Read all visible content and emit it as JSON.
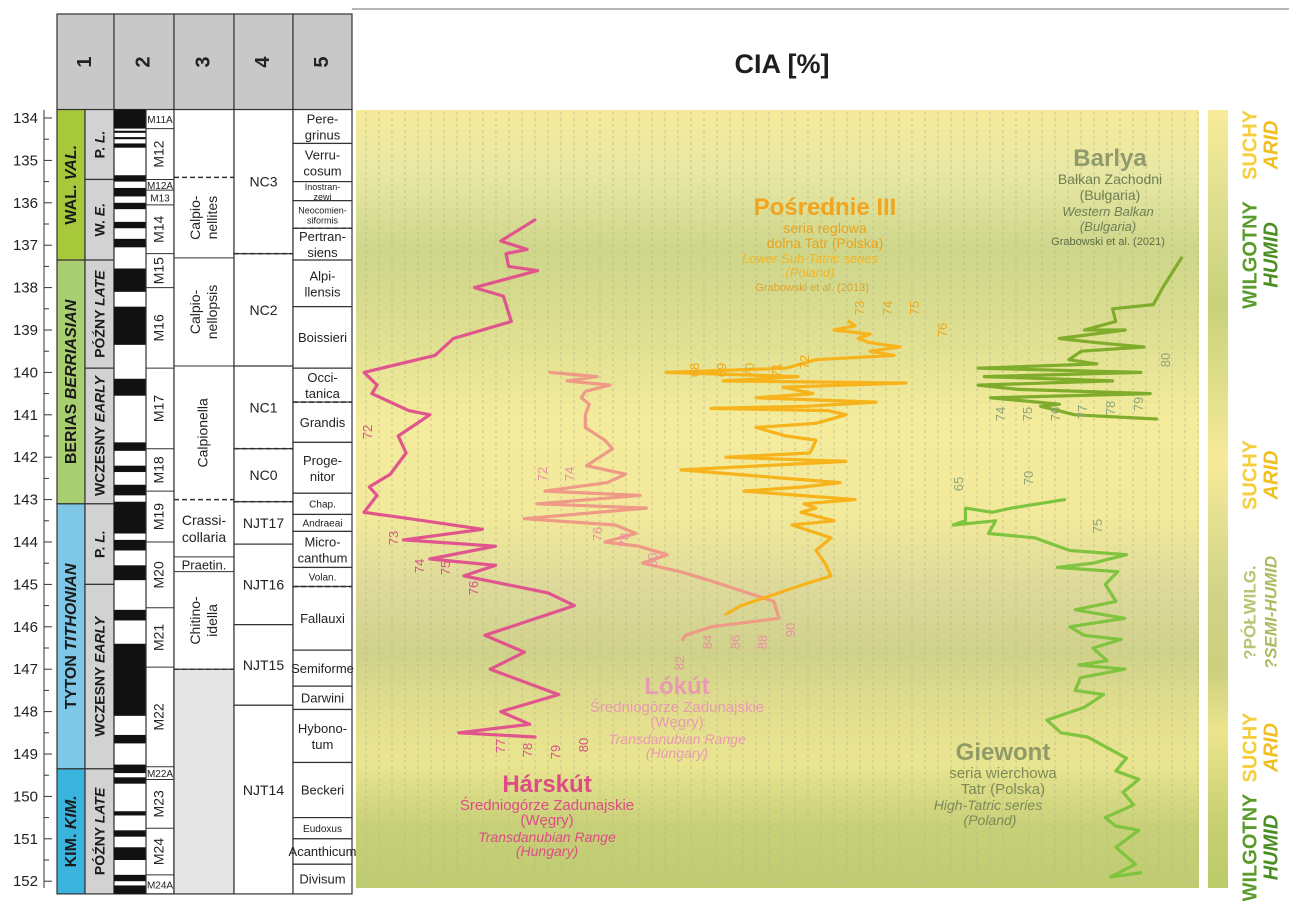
{
  "chart_data": {
    "type": "line",
    "title": "CIA [%]",
    "y_axis": {
      "label": "",
      "min": 134,
      "max": 152,
      "ticks": [
        134,
        135,
        136,
        137,
        138,
        139,
        140,
        141,
        142,
        143,
        144,
        145,
        146,
        147,
        148,
        149,
        150,
        151,
        152
      ],
      "inverted": true
    },
    "columns": {
      "headers": [
        "1",
        "2",
        "3",
        "4",
        "5"
      ],
      "col1_stages": [
        {
          "label": "WAL. VAL.",
          "from": 133.8,
          "to": 137.35,
          "color": "#a6c83a"
        },
        {
          "label": "BERIAS BERRIASIAN",
          "from": 137.35,
          "to": 143.1,
          "color": "#a9cf72"
        },
        {
          "label": "TYTON TITHONIAN",
          "from": 143.1,
          "to": 149.35,
          "color": "#7fc7e6"
        },
        {
          "label": "KIM. KIM.",
          "from": 149.35,
          "to": 152.3,
          "color": "#3ab4dc"
        }
      ],
      "col1_substages": [
        {
          "label": "P. L.",
          "from": 133.8,
          "to": 135.45
        },
        {
          "label": "W. E.",
          "from": 135.45,
          "to": 137.35
        },
        {
          "label": "PÓŹNY LATE",
          "from": 137.35,
          "to": 139.9
        },
        {
          "label": "WCZESNY EARLY",
          "from": 139.9,
          "to": 143.1
        },
        {
          "label": "P. L.",
          "from": 143.1,
          "to": 145.0
        },
        {
          "label": "WCZESNY EARLY",
          "from": 145.0,
          "to": 149.35
        },
        {
          "label": "PÓŹNY LATE",
          "from": 149.35,
          "to": 152.3
        }
      ],
      "col2_zones": [
        "M11A",
        "M12",
        "M12A",
        "M13",
        "M14",
        "M15",
        "M16",
        "M17",
        "M18",
        "M19",
        "M20",
        "M21",
        "M22",
        "M22A",
        "M23",
        "M24",
        "M24A"
      ],
      "col3_zones": [
        "Calpio-nellites",
        "Calpio-nellopsis",
        "Calpionella",
        "Crassi-collaria",
        "Praetin.",
        "Chitino-idella"
      ],
      "col4_zones": [
        "NC3",
        "NC2",
        "NC1",
        "NC0",
        "NJT17",
        "NJT16",
        "NJT15",
        "NJT14"
      ],
      "col5_zones": [
        "Pere-grinus",
        "Verru-cosum",
        "Inostran-zewi",
        "Neocomien-siformis",
        "Pertran-siens",
        "Alpi-llensis",
        "Boissieri",
        "Occi-tanica",
        "Grandis",
        "Proge-nitor",
        "Chap.",
        "Andraeai",
        "Micro-canthum",
        "Volan.",
        "Fallauxi",
        "Semiforme",
        "Darwini",
        "Hybono-tum",
        "Beckeri",
        "Eudoxus",
        "Acanthicum",
        "Divisum"
      ]
    },
    "climate_labels": [
      {
        "pl": "SUCHY",
        "en": "ARID",
        "center": 134.6
      },
      {
        "pl": "WILGOTNY",
        "en": "HUMID",
        "center": 137.0
      },
      {
        "pl": "SUCHY",
        "en": "ARID",
        "center": 142.3
      },
      {
        "pl": "?PÓŁWILG.",
        "en": "?SEMI-HUMID",
        "center": 145.9
      },
      {
        "pl": "SUCHY",
        "en": "ARID",
        "center": 148.8
      },
      {
        "pl": "WILGOTNY",
        "en": "HUMID",
        "center": 151.1
      }
    ],
    "series": [
      {
        "name": "Hárskút",
        "sub_pl": "Średniogórze Zadunajskie",
        "country_pl": "(Węgry)",
        "sub_en": "Transdanubian Range",
        "country_en": "(Hungary)",
        "color": "#e0558d",
        "tick_values": [
          72,
          73,
          74,
          75,
          76,
          77,
          78,
          79,
          80
        ],
        "points": [
          [
            78.5,
            136.4
          ],
          [
            77.2,
            136.9
          ],
          [
            78.2,
            137.1
          ],
          [
            77.4,
            137.2
          ],
          [
            77.5,
            137.5
          ],
          [
            78.6,
            137.6
          ],
          [
            76.2,
            138.0
          ],
          [
            77.3,
            138.2
          ],
          [
            77.6,
            138.8
          ],
          [
            75.4,
            139.2
          ],
          [
            74.7,
            139.6
          ],
          [
            72.0,
            140.0
          ],
          [
            72.5,
            140.3
          ],
          [
            72.3,
            140.5
          ],
          [
            73.7,
            140.9
          ],
          [
            74.5,
            141.0
          ],
          [
            73.3,
            141.5
          ],
          [
            73.6,
            141.9
          ],
          [
            73.0,
            142.4
          ],
          [
            72.2,
            142.7
          ],
          [
            72.5,
            142.9
          ],
          [
            72.0,
            143.3
          ],
          [
            74.3,
            143.5
          ],
          [
            76.5,
            143.7
          ],
          [
            73.5,
            143.95
          ],
          [
            77.0,
            144.1
          ],
          [
            74.5,
            144.4
          ],
          [
            77.0,
            144.55
          ],
          [
            75.8,
            144.8
          ],
          [
            79.0,
            145.2
          ],
          [
            80.0,
            145.5
          ],
          [
            76.6,
            146.2
          ],
          [
            78.1,
            146.6
          ],
          [
            76.8,
            147.0
          ],
          [
            79.4,
            147.6
          ],
          [
            77.2,
            148.0
          ],
          [
            78.3,
            148.3
          ],
          [
            75.6,
            148.5
          ],
          [
            78.5,
            148.6
          ]
        ]
      },
      {
        "name": "Lókút",
        "sub_pl": "Średniogórze Zadunajskie",
        "country_pl": "(Węgry)",
        "sub_en": "Transdanubian Range",
        "country_en": "(Hungary)",
        "color": "#ee9a86",
        "tick_values": [
          72,
          74,
          76,
          78,
          80,
          82,
          84,
          86,
          88,
          90
        ],
        "points": [
          [
            72.4,
            140.0
          ],
          [
            76.0,
            140.1
          ],
          [
            73.7,
            140.2
          ],
          [
            77.0,
            140.3
          ],
          [
            75.1,
            140.45
          ],
          [
            74.8,
            140.6
          ],
          [
            75.4,
            140.75
          ],
          [
            75.1,
            141.0
          ],
          [
            75.1,
            141.3
          ],
          [
            76.6,
            141.6
          ],
          [
            77.2,
            141.8
          ],
          [
            75.2,
            142.2
          ],
          [
            78.2,
            142.4
          ],
          [
            76.8,
            142.6
          ],
          [
            72.0,
            142.8
          ],
          [
            79.3,
            142.9
          ],
          [
            71.4,
            143.1
          ],
          [
            79.8,
            143.2
          ],
          [
            70.4,
            143.45
          ],
          [
            77.4,
            143.6
          ],
          [
            79.0,
            143.8
          ],
          [
            76.6,
            144.0
          ],
          [
            79.2,
            144.1
          ],
          [
            81.4,
            144.3
          ],
          [
            79.5,
            144.5
          ],
          [
            82.4,
            144.7
          ],
          [
            84.6,
            144.9
          ],
          [
            89.6,
            145.4
          ],
          [
            90.0,
            145.8
          ],
          [
            84.8,
            146.0
          ],
          [
            82.8,
            146.2
          ],
          [
            82.6,
            146.3
          ]
        ]
      },
      {
        "name": "Pośrednie III",
        "sub_pl": "seria reglowa dolna Tatr (Polska)",
        "sub_en": "Lower Sub-Tatric series",
        "country_en": "(Poland)",
        "ref": "Grabowski et al. (2013)",
        "color": "#f6b31b",
        "tick_values": [
          68,
          69,
          70,
          71,
          72,
          73,
          74,
          75,
          76
        ],
        "points": [
          [
            74.1,
            138.8
          ],
          [
            74.3,
            138.9
          ],
          [
            73.6,
            139.0
          ],
          [
            74.8,
            139.1
          ],
          [
            74.4,
            139.2
          ],
          [
            74.8,
            139.3
          ],
          [
            75.8,
            139.4
          ],
          [
            74.8,
            139.5
          ],
          [
            75.6,
            139.6
          ],
          [
            73.0,
            139.7
          ],
          [
            72.0,
            139.9
          ],
          [
            68.0,
            140.0
          ],
          [
            72.4,
            140.1
          ],
          [
            69.9,
            140.2
          ],
          [
            76.0,
            140.25
          ],
          [
            71.9,
            140.35
          ],
          [
            72.9,
            140.5
          ],
          [
            71.0,
            140.6
          ],
          [
            75.0,
            140.7
          ],
          [
            72.7,
            140.8
          ],
          [
            69.5,
            140.85
          ],
          [
            73.4,
            140.9
          ],
          [
            74.0,
            141.0
          ],
          [
            73.0,
            141.2
          ],
          [
            71.0,
            141.3
          ],
          [
            72.0,
            141.5
          ],
          [
            73.0,
            141.6
          ],
          [
            72.8,
            141.9
          ],
          [
            70.0,
            142.0
          ],
          [
            74.0,
            142.1
          ],
          [
            68.5,
            142.3
          ],
          [
            72.0,
            142.5
          ],
          [
            73.8,
            142.6
          ],
          [
            72.6,
            142.7
          ],
          [
            70.6,
            142.8
          ],
          [
            74.3,
            143.0
          ],
          [
            72.6,
            143.1
          ],
          [
            73.0,
            143.2
          ],
          [
            72.5,
            143.3
          ],
          [
            73.6,
            143.5
          ],
          [
            72.2,
            143.6
          ],
          [
            73.5,
            143.9
          ],
          [
            73.0,
            144.2
          ],
          [
            73.3,
            144.5
          ],
          [
            73.5,
            144.8
          ],
          [
            72.6,
            145.0
          ],
          [
            70.5,
            145.5
          ],
          [
            70.0,
            145.7
          ]
        ]
      },
      {
        "name": "Barlya",
        "sub_pl": "Bałkan Zachodni",
        "country_pl": "(Bułgaria)",
        "sub_en": "Western Balkan",
        "country_en": "(Bulgaria)",
        "ref": "Grabowski et al. (2021)",
        "color": "#7fac2a",
        "tick_values": [
          74,
          75,
          76,
          77,
          78,
          79,
          80
        ],
        "points": [
          [
            80.5,
            137.3
          ],
          [
            79.9,
            138.0
          ],
          [
            79.6,
            138.4
          ],
          [
            78.3,
            138.5
          ],
          [
            78.4,
            138.8
          ],
          [
            77.4,
            139.0
          ],
          [
            78.7,
            139.0
          ],
          [
            76.6,
            139.2
          ],
          [
            77.8,
            139.3
          ],
          [
            79.3,
            139.4
          ],
          [
            77.3,
            139.5
          ],
          [
            76.9,
            139.7
          ],
          [
            77.8,
            139.8
          ],
          [
            74.0,
            139.9
          ],
          [
            79.2,
            140.0
          ],
          [
            74.2,
            140.1
          ],
          [
            78.3,
            140.2
          ],
          [
            74.0,
            140.3
          ],
          [
            75.3,
            140.4
          ],
          [
            79.5,
            140.5
          ],
          [
            74.4,
            140.6
          ],
          [
            76.6,
            140.75
          ],
          [
            76.0,
            140.8
          ],
          [
            77.1,
            141.0
          ],
          [
            79.7,
            141.1
          ]
        ]
      },
      {
        "name": "Giewont",
        "sub_pl": "seria wierchowa Tatr (Polska)",
        "sub_en": "High-Tatric series",
        "country_en": "(Poland)",
        "color": "#7fc33e",
        "tick_values": [
          65,
          70,
          75
        ],
        "points": [
          [
            71.7,
            143.0
          ],
          [
            68.7,
            143.2
          ],
          [
            67.6,
            143.3
          ],
          [
            66.1,
            143.2
          ],
          [
            66.1,
            143.5
          ],
          [
            65.4,
            143.6
          ],
          [
            67.8,
            143.5
          ],
          [
            67.4,
            143.8
          ],
          [
            70.0,
            143.9
          ],
          [
            72.0,
            144.2
          ],
          [
            75.2,
            144.3
          ],
          [
            73.3,
            144.5
          ],
          [
            71.3,
            144.6
          ],
          [
            74.7,
            144.7
          ],
          [
            74.0,
            145.0
          ],
          [
            74.6,
            145.4
          ],
          [
            72.3,
            145.6
          ],
          [
            75.1,
            145.8
          ],
          [
            72.0,
            146.0
          ],
          [
            72.8,
            146.2
          ],
          [
            74.9,
            146.3
          ],
          [
            73.3,
            146.5
          ],
          [
            74.1,
            146.8
          ],
          [
            72.5,
            146.9
          ],
          [
            75.1,
            147.0
          ],
          [
            72.6,
            147.2
          ],
          [
            72.3,
            147.5
          ],
          [
            73.9,
            147.6
          ],
          [
            72.8,
            147.9
          ],
          [
            70.7,
            148.2
          ],
          [
            71.5,
            148.5
          ],
          [
            73.0,
            148.6
          ],
          [
            75.2,
            149.1
          ],
          [
            74.6,
            149.4
          ],
          [
            75.9,
            149.6
          ],
          [
            75.0,
            149.9
          ],
          [
            75.6,
            150.2
          ],
          [
            74.0,
            150.5
          ],
          [
            74.6,
            150.7
          ],
          [
            75.9,
            150.8
          ],
          [
            74.6,
            151.2
          ],
          [
            75.7,
            151.6
          ],
          [
            74.3,
            151.9
          ],
          [
            76.0,
            151.8
          ]
        ]
      }
    ]
  }
}
